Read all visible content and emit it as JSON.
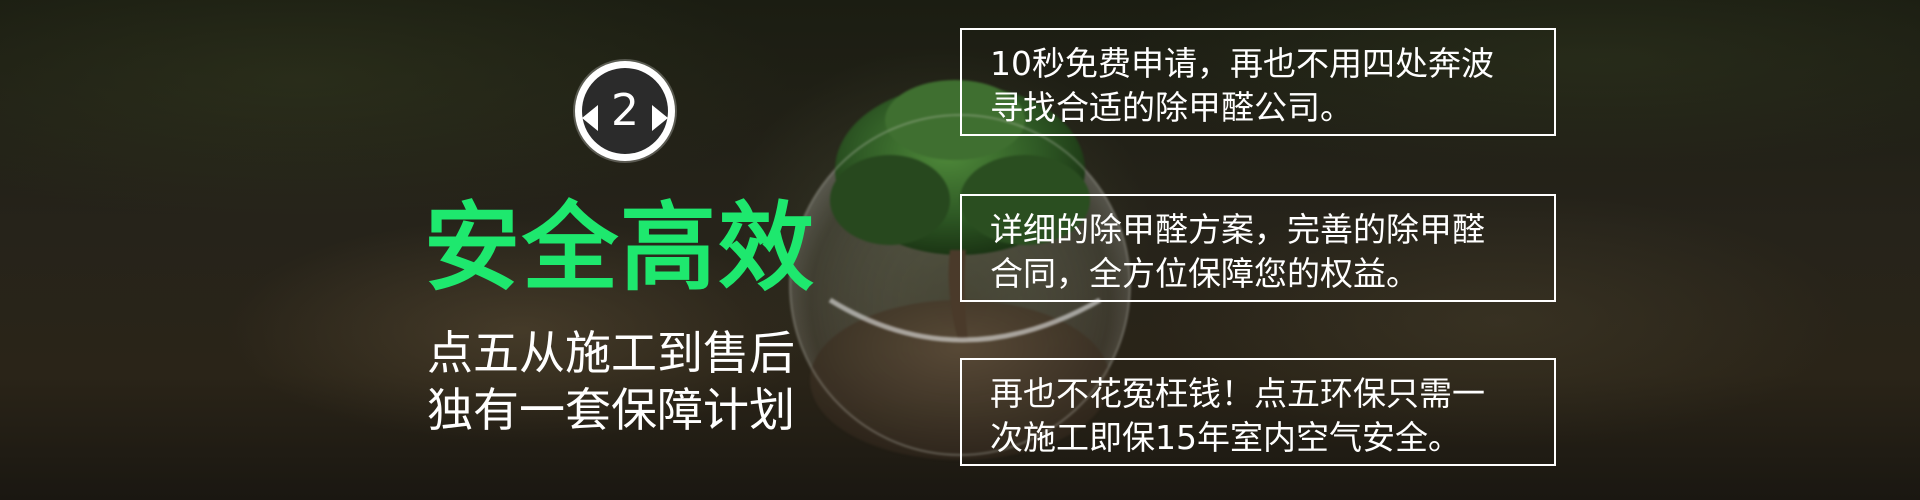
{
  "badge": {
    "number": "2"
  },
  "headline": "安全高效",
  "subheadline": {
    "line1": "点五从施工到售后",
    "line2": "独有一套保障计划"
  },
  "cards": [
    {
      "line1": "10秒免费申请，再也不用四处奔波",
      "line2": "寻找合适的除甲醛公司。"
    },
    {
      "line1": "详细的除甲醛方案，完善的除甲醛",
      "line2": "合同，全方位保障您的权益。"
    },
    {
      "line1": "再也不花冤枉钱！点五环保只需一",
      "line2": "次施工即保15年室内空气安全。"
    }
  ],
  "colors": {
    "accent": "#1ee86e",
    "text": "#ffffff",
    "background": "#1b1d12"
  }
}
